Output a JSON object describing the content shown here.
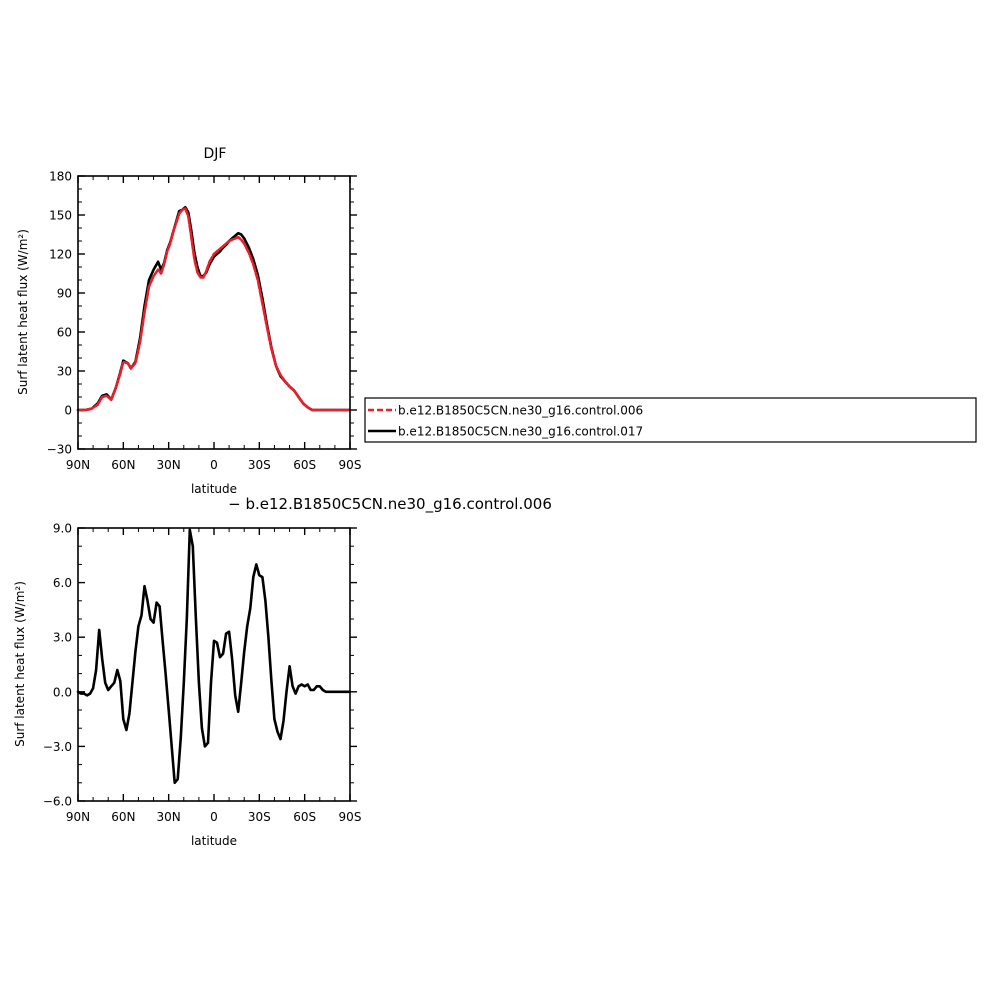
{
  "chart_data": [
    {
      "type": "line",
      "title": "DJF",
      "xlabel": "latitude",
      "ylabel": "Surf latent heat flux (W/m²)",
      "xlim": [
        90,
        -90
      ],
      "ylim": [
        -30,
        180
      ],
      "x_ticks": [
        {
          "value": 90,
          "label": "90N"
        },
        {
          "value": 60,
          "label": "60N"
        },
        {
          "value": 30,
          "label": "30N"
        },
        {
          "value": 0,
          "label": "0"
        },
        {
          "value": -30,
          "label": "30S"
        },
        {
          "value": -60,
          "label": "60S"
        },
        {
          "value": -90,
          "label": "90S"
        }
      ],
      "y_ticks": [
        180,
        150,
        120,
        90,
        60,
        30,
        0,
        -30
      ],
      "legend_position": "right",
      "series": [
        {
          "name": "b.e12.B1850C5CN.ne30_g16.control.006",
          "color": "#e8202a",
          "dash": "dashed",
          "x": [
            90,
            85,
            81,
            77,
            74,
            71,
            68,
            65,
            62,
            60,
            57,
            55,
            52,
            49,
            46,
            43,
            40,
            37,
            35,
            33,
            31,
            29,
            27,
            25,
            23,
            21,
            19,
            17,
            15,
            13,
            11,
            9,
            7,
            5,
            3,
            1,
            0,
            -2,
            -4,
            -6,
            -8,
            -10,
            -12,
            -14,
            -16,
            -18,
            -20,
            -23,
            -26,
            -29,
            -32,
            -35,
            -38,
            -41,
            -44,
            -47,
            -50,
            -53,
            -56,
            -59,
            -62,
            -65,
            -68,
            -71,
            -74,
            -77,
            -80,
            -84,
            -88,
            -90
          ],
          "y": [
            0,
            0,
            1,
            4,
            10,
            11,
            8,
            17,
            28,
            37,
            36,
            32,
            36,
            52,
            75,
            95,
            103,
            108,
            105,
            112,
            122,
            128,
            137,
            144,
            151,
            154,
            155,
            149,
            133,
            116,
            106,
            102,
            102,
            107,
            114,
            118,
            120,
            122,
            124,
            126,
            128,
            130,
            131,
            132,
            133,
            131,
            128,
            121,
            112,
            100,
            82,
            64,
            47,
            34,
            27,
            22,
            18,
            15,
            10,
            5,
            2,
            0,
            0,
            0,
            0,
            0,
            0,
            0,
            0,
            0
          ]
        },
        {
          "name": "b.e12.B1850C5CN.ne30_g16.control.017",
          "color": "#000000",
          "dash": "solid",
          "x": [
            90,
            85,
            81,
            77,
            74,
            71,
            68,
            65,
            62,
            60,
            57,
            55,
            52,
            49,
            46,
            43,
            40,
            37,
            35,
            33,
            31,
            29,
            27,
            25,
            23,
            21,
            19,
            17,
            15,
            13,
            11,
            9,
            7,
            5,
            3,
            1,
            0,
            -2,
            -4,
            -6,
            -8,
            -10,
            -12,
            -14,
            -16,
            -18,
            -20,
            -23,
            -26,
            -29,
            -32,
            -35,
            -38,
            -41,
            -44,
            -47,
            -50,
            -53,
            -56,
            -59,
            -62,
            -65,
            -68,
            -71,
            -74,
            -77,
            -80,
            -84,
            -88,
            -90
          ],
          "y": [
            0,
            0,
            1,
            5,
            11,
            12,
            8,
            17,
            29,
            38,
            36,
            32,
            37,
            55,
            80,
            100,
            108,
            114,
            108,
            113,
            123,
            129,
            137,
            145,
            153,
            154,
            156,
            152,
            138,
            121,
            110,
            103,
            103,
            106,
            112,
            116,
            118,
            120,
            122,
            125,
            127,
            130,
            132,
            134,
            136,
            135,
            132,
            125,
            116,
            104,
            86,
            66,
            48,
            34,
            26,
            22,
            18,
            15,
            10,
            5,
            2,
            0,
            0,
            0,
            0,
            0,
            0,
            0,
            0,
            0
          ]
        }
      ]
    },
    {
      "type": "line",
      "title": "− b.e12.B1850C5CN.ne30_g16.control.006",
      "xlabel": "latitude",
      "ylabel": "Surf latent heat flux (W/m²)",
      "xlim": [
        90,
        -90
      ],
      "ylim": [
        -6.0,
        9.0
      ],
      "x_ticks": [
        {
          "value": 90,
          "label": "90N"
        },
        {
          "value": 60,
          "label": "60N"
        },
        {
          "value": 30,
          "label": "30N"
        },
        {
          "value": 0,
          "label": "0"
        },
        {
          "value": -30,
          "label": "30S"
        },
        {
          "value": -60,
          "label": "60S"
        },
        {
          "value": -90,
          "label": "90S"
        }
      ],
      "y_ticks": [
        "9.0",
        "6.0",
        "3.0",
        "0.0",
        "−3.0",
        "−6.0"
      ],
      "series": [
        {
          "color": "#000000",
          "x": [
            90,
            88,
            86,
            84,
            82,
            80,
            78,
            76,
            74,
            72,
            70,
            68,
            66,
            64,
            62,
            60,
            58,
            56,
            54,
            52,
            50,
            48,
            46,
            44,
            42,
            40,
            38,
            36,
            34,
            32,
            30,
            28,
            26,
            24,
            22,
            20,
            18,
            16,
            14,
            12,
            10,
            8,
            6,
            4,
            2,
            0,
            -2,
            -4,
            -6,
            -8,
            -10,
            -12,
            -14,
            -16,
            -18,
            -20,
            -22,
            -24,
            -26,
            -28,
            -30,
            -32,
            -34,
            -36,
            -38,
            -40,
            -42,
            -44,
            -46,
            -48,
            -50,
            -52,
            -54,
            -56,
            -58,
            -60,
            -62,
            -64,
            -66,
            -68,
            -70,
            -72,
            -74,
            -76,
            -78,
            -80,
            -82,
            -84,
            -86,
            -88,
            -90
          ],
          "y": [
            0.0,
            -0.1,
            -0.1,
            -0.2,
            -0.1,
            0.2,
            1.2,
            3.4,
            1.8,
            0.5,
            0.1,
            0.3,
            0.5,
            1.2,
            0.6,
            -1.5,
            -2.1,
            -1.2,
            0.5,
            2.2,
            3.6,
            4.2,
            5.8,
            5.0,
            4.0,
            3.8,
            4.9,
            4.7,
            2.8,
            1.0,
            -1.0,
            -3.0,
            -5.0,
            -4.8,
            -2.5,
            0.5,
            4.0,
            8.9,
            8.0,
            4.0,
            0.5,
            -2.0,
            -3.0,
            -2.8,
            0.5,
            2.8,
            2.7,
            1.9,
            2.1,
            3.2,
            3.3,
            1.8,
            -0.2,
            -1.1,
            0.5,
            2.2,
            3.6,
            4.6,
            6.3,
            7.0,
            6.4,
            6.3,
            5.0,
            3.0,
            0.6,
            -1.5,
            -2.2,
            -2.6,
            -1.6,
            0.0,
            1.4,
            0.3,
            -0.1,
            0.3,
            0.4,
            0.3,
            0.4,
            0.1,
            0.1,
            0.3,
            0.3,
            0.1,
            0.0,
            0.0,
            0.0,
            0.0,
            0.0,
            0.0,
            0.0,
            0.0,
            0.0
          ]
        }
      ]
    }
  ]
}
